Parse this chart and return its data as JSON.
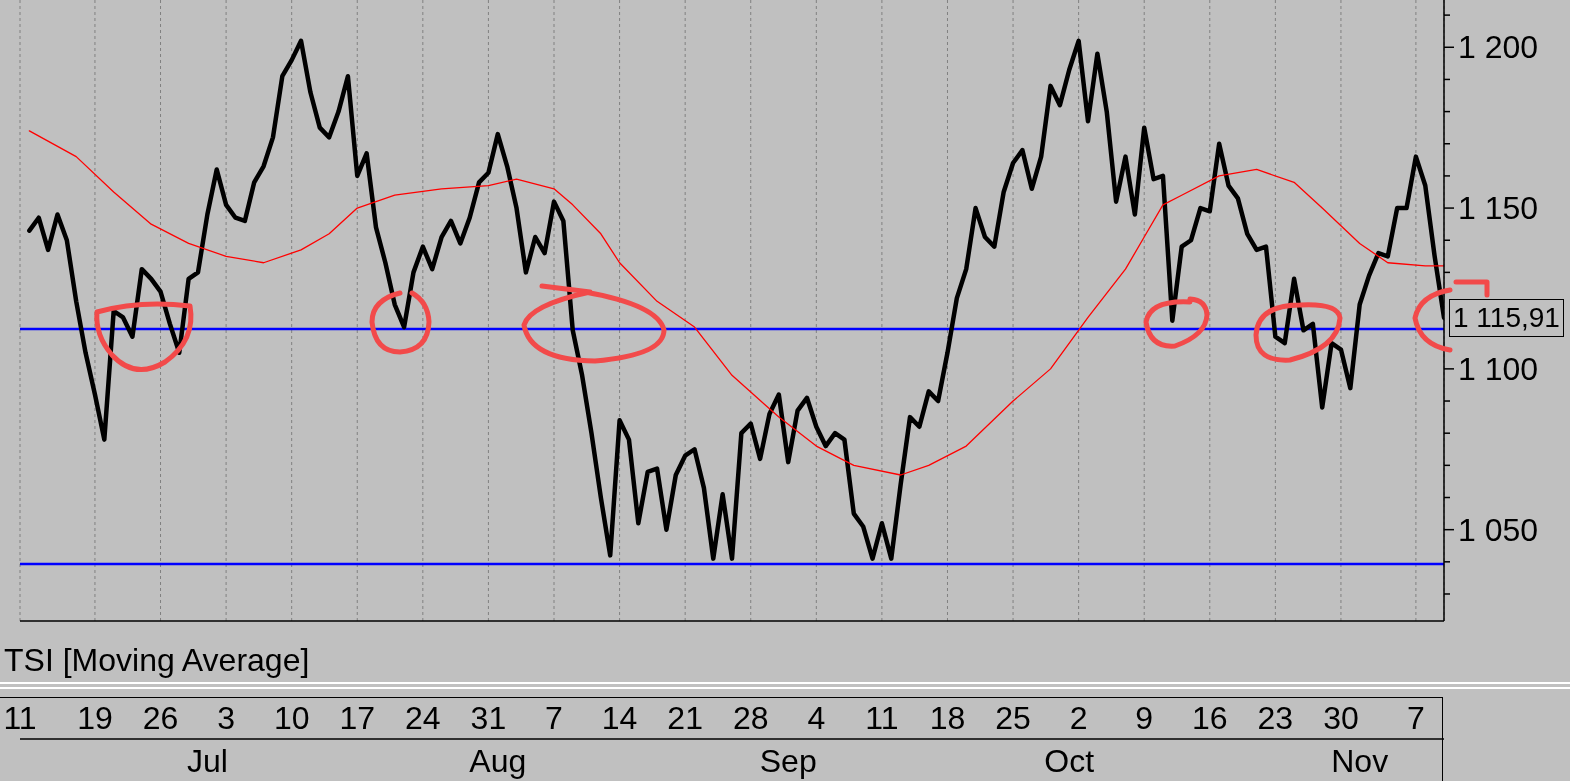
{
  "chart_data": {
    "type": "line",
    "x": [
      "--06-12",
      "--06-13",
      "--06-14",
      "--06-15",
      "--06-16",
      "--06-17",
      "--06-18",
      "--06-19",
      "--06-20",
      "--06-21",
      "--06-22",
      "--06-23",
      "--06-24",
      "--06-25",
      "--06-26",
      "--06-27",
      "--06-28",
      "--06-29",
      "--06-30",
      "--07-01",
      "--07-02",
      "--07-03",
      "--07-04",
      "--07-05",
      "--07-06",
      "--07-07",
      "--07-08",
      "--07-09",
      "--07-10",
      "--07-11",
      "--07-12",
      "--07-13",
      "--07-14",
      "--07-15",
      "--07-16",
      "--07-17",
      "--07-18",
      "--07-19",
      "--07-20",
      "--07-21",
      "--07-22",
      "--07-23",
      "--07-24",
      "--07-25",
      "--07-26",
      "--07-27",
      "--07-28",
      "--07-29",
      "--07-30",
      "--07-31",
      "--08-01",
      "--08-02",
      "--08-03",
      "--08-04",
      "--08-05",
      "--08-06",
      "--08-07",
      "--08-08",
      "--08-09",
      "--08-10",
      "--08-11",
      "--08-12",
      "--08-13",
      "--08-14",
      "--08-15",
      "--08-16",
      "--08-17",
      "--08-18",
      "--08-19",
      "--08-20",
      "--08-21",
      "--08-22",
      "--08-23",
      "--08-24",
      "--08-25",
      "--08-26",
      "--08-27",
      "--08-28",
      "--08-29",
      "--08-30",
      "--08-31",
      "--09-01",
      "--09-02",
      "--09-03",
      "--09-04",
      "--09-05",
      "--09-06",
      "--09-07",
      "--09-08",
      "--09-09",
      "--09-10",
      "--09-11",
      "--09-12",
      "--09-13",
      "--09-14",
      "--09-15",
      "--09-16",
      "--09-17",
      "--09-18",
      "--09-19",
      "--09-20",
      "--09-21",
      "--09-22",
      "--09-23",
      "--09-24",
      "--09-25",
      "--09-26",
      "--09-27",
      "--09-28",
      "--09-29",
      "--09-30",
      "--10-01",
      "--10-02",
      "--10-03",
      "--10-04",
      "--10-05",
      "--10-06",
      "--10-07",
      "--10-08",
      "--10-09",
      "--10-10",
      "--10-11",
      "--10-12",
      "--10-13",
      "--10-14",
      "--10-15",
      "--10-16",
      "--10-17",
      "--10-18",
      "--10-19",
      "--10-20",
      "--10-21",
      "--10-22",
      "--10-23",
      "--10-24",
      "--10-25",
      "--10-26",
      "--10-27",
      "--10-28",
      "--10-29",
      "--10-30",
      "--10-31",
      "--11-01",
      "--11-02",
      "--11-03",
      "--11-04",
      "--11-05",
      "--11-06",
      "--11-07",
      "--11-08",
      "--11-09",
      "--11-10"
    ],
    "series": [
      {
        "color": "#000000",
        "values": [
          1143,
          1147,
          1137,
          1148,
          1140,
          1121,
          1105,
          1092,
          1078,
          1118,
          1116,
          1110,
          1131,
          1128,
          1124,
          1114,
          1105,
          1128,
          1130,
          1148,
          1162,
          1151,
          1147,
          1146,
          1158,
          1163,
          1172,
          1191,
          1196,
          1202,
          1186,
          1175,
          1172,
          1180,
          1191,
          1160,
          1167,
          1144,
          1133,
          1120,
          1113,
          1130,
          1138,
          1131,
          1141,
          1146,
          1139,
          1147,
          1158,
          1161,
          1173,
          1163,
          1150,
          1130,
          1141,
          1136,
          1152,
          1146,
          1112,
          1098,
          1080,
          1060,
          1042,
          1084,
          1078,
          1052,
          1068,
          1069,
          1050,
          1067,
          1073,
          1075,
          1063,
          1041,
          1061,
          1041,
          1080,
          1083,
          1072,
          1086,
          1092,
          1071,
          1087,
          1091,
          1082,
          1076,
          1080,
          1078,
          1055,
          1051,
          1041,
          1052,
          1041,
          1064,
          1085,
          1082,
          1093,
          1090,
          1105,
          1122,
          1131,
          1150,
          1141,
          1138,
          1155,
          1164,
          1168,
          1156,
          1166,
          1188,
          1182,
          1193,
          1202,
          1177,
          1198,
          1180,
          1152,
          1166,
          1148,
          1175,
          1159,
          1160,
          1115,
          1138,
          1140,
          1150,
          1149,
          1170,
          1157,
          1153,
          1142,
          1137,
          1138,
          1110,
          1108,
          1128,
          1112,
          1114,
          1088,
          1108,
          1106,
          1094,
          1120,
          1129,
          1136,
          1135,
          1150,
          1150,
          1166,
          1157,
          1135,
          1115.91
        ]
      },
      {
        "color": "#ff0000",
        "x": [
          "--06-12",
          "--06-17",
          "--06-21",
          "--06-25",
          "--06-29",
          "--07-03",
          "--07-07",
          "--07-11",
          "--07-14",
          "--07-17",
          "--07-21",
          "--07-26",
          "--07-31",
          "--08-03",
          "--08-07",
          "--08-09",
          "--08-12",
          "--08-14",
          "--08-18",
          "--08-22",
          "--08-26",
          "--08-31",
          "--09-04",
          "--09-08",
          "--09-13",
          "--09-16",
          "--09-20",
          "--09-25",
          "--09-29",
          "--10-03",
          "--10-07",
          "--10-09",
          "--10-11",
          "--10-13",
          "--10-17",
          "--10-21",
          "--10-25",
          "--10-28",
          "--11-01",
          "--11-04",
          "--11-08",
          "--11-10"
        ],
        "values": [
          1174,
          1166,
          1155,
          1145,
          1139,
          1135,
          1133,
          1137,
          1142,
          1150,
          1154,
          1156,
          1157,
          1159,
          1156,
          1151,
          1142,
          1133,
          1121,
          1113,
          1098,
          1085,
          1076,
          1070,
          1067,
          1070,
          1076,
          1090,
          1100,
          1116,
          1131,
          1141,
          1151,
          1154,
          1160,
          1162,
          1158,
          1150,
          1139,
          1133,
          1132,
          1132
        ]
      }
    ],
    "xlim": [
      "--06-11",
      "--11-10"
    ],
    "xticks": [
      {
        "value": "--06-11",
        "label": "11"
      },
      {
        "value": "--06-19",
        "label": "19"
      },
      {
        "value": "--06-26",
        "label": "26"
      },
      {
        "value": "--07-03",
        "label": "3"
      },
      {
        "value": "--07-10",
        "label": "10"
      },
      {
        "value": "--07-17",
        "label": "17"
      },
      {
        "value": "--07-24",
        "label": "24"
      },
      {
        "value": "--07-31",
        "label": "31"
      },
      {
        "value": "--08-07",
        "label": "7"
      },
      {
        "value": "--08-14",
        "label": "14"
      },
      {
        "value": "--08-21",
        "label": "21"
      },
      {
        "value": "--08-28",
        "label": "28"
      },
      {
        "value": "--09-04",
        "label": "4"
      },
      {
        "value": "--09-11",
        "label": "11"
      },
      {
        "value": "--09-18",
        "label": "18"
      },
      {
        "value": "--09-25",
        "label": "25"
      },
      {
        "value": "--10-02",
        "label": "2"
      },
      {
        "value": "--10-09",
        "label": "9"
      },
      {
        "value": "--10-16",
        "label": "16"
      },
      {
        "value": "--10-23",
        "label": "23"
      },
      {
        "value": "--10-30",
        "label": "30"
      },
      {
        "value": "--11-07",
        "label": "7"
      }
    ],
    "x2lim": [
      "--06-11",
      "--11-10"
    ],
    "x2ticks": [
      {
        "value": "--07-01",
        "label": "Jul"
      },
      {
        "value": "--08-01",
        "label": "Aug"
      },
      {
        "value": "--09-01",
        "label": "Sep"
      },
      {
        "value": "--10-01",
        "label": "Oct"
      },
      {
        "value": "--11-01",
        "label": "Nov"
      }
    ],
    "ylim": [
      1021.6,
      1214.7
    ],
    "yticks": [
      {
        "value": 1030,
        "label": null
      },
      {
        "value": 1040,
        "label": null
      },
      {
        "value": 1050,
        "label": "1 050"
      },
      {
        "value": 1060,
        "label": null
      },
      {
        "value": 1070,
        "label": null
      },
      {
        "value": 1080,
        "label": null
      },
      {
        "value": 1090,
        "label": null
      },
      {
        "value": 1100,
        "label": "1 100"
      },
      {
        "value": 1130,
        "label": null
      },
      {
        "value": 1140,
        "label": null
      },
      {
        "value": 1150,
        "label": "1 150"
      },
      {
        "value": 1160,
        "label": null
      },
      {
        "value": 1170,
        "label": null
      },
      {
        "value": 1180,
        "label": null
      },
      {
        "value": 1190,
        "label": null
      },
      {
        "value": 1200,
        "label": "1 200"
      },
      {
        "value": 1210,
        "label": null
      }
    ],
    "ref_lines": [
      {
        "axis": "y",
        "value": 1112.4,
        "color": "#0000ff"
      },
      {
        "axis": "y",
        "value": 1039.3,
        "color": "#0000ff"
      }
    ],
    "annotations": [
      "TSI [Moving Average]",
      {
        "text": "1 115,91",
        "x": "--11-10",
        "y": 1115.91
      }
    ],
    "grid": "x",
    "marker": "none",
    "line_style": "solid"
  }
}
